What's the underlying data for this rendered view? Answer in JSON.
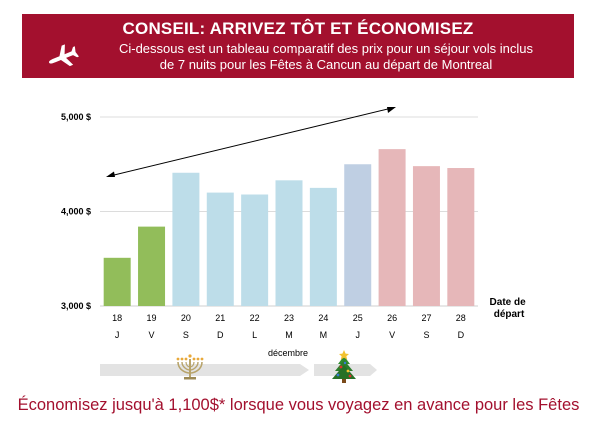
{
  "banner": {
    "title": "CONSEIL: ARRIVEZ TÔT ET ÉCONOMISEZ",
    "line1": "Ci-dessous est un tableau comparatif des prix pour un séjour vols inclus",
    "line2": "de 7 nuits pour les Fêtes à Cancun au départ de Montreal",
    "icon": "airplane-icon"
  },
  "chart_data": {
    "type": "bar",
    "categories": [
      "18",
      "19",
      "20",
      "21",
      "22",
      "23",
      "24",
      "25",
      "26",
      "27",
      "28"
    ],
    "weekdays": [
      "J",
      "V",
      "S",
      "D",
      "L",
      "M",
      "M",
      "J",
      "V",
      "S",
      "D"
    ],
    "values": [
      3510,
      3840,
      4410,
      4200,
      4180,
      4330,
      4250,
      4500,
      4660,
      4480,
      4460
    ],
    "bar_colors": [
      "#92bd5a",
      "#92bd5a",
      "#bddde9",
      "#bddde9",
      "#bddde9",
      "#bddde9",
      "#bddde9",
      "#bfcfe3",
      "#e6b7b9",
      "#e6b7b9",
      "#e6b7b9"
    ],
    "ylim": [
      3000,
      5000
    ],
    "yticks": [
      3000,
      4000,
      5000
    ],
    "ytick_labels": [
      "3,000 $",
      "4,000 $",
      "5,000 $"
    ],
    "xlabel": "décembre",
    "axis_note": "Date de départ",
    "grid": true,
    "timeline_icons": [
      "menorah-icon",
      "christmas-tree-icon"
    ]
  },
  "footer": {
    "text": "Économisez jusqu'à 1,100$* lorsque vous voyagez en avance pour les Fêtes"
  }
}
